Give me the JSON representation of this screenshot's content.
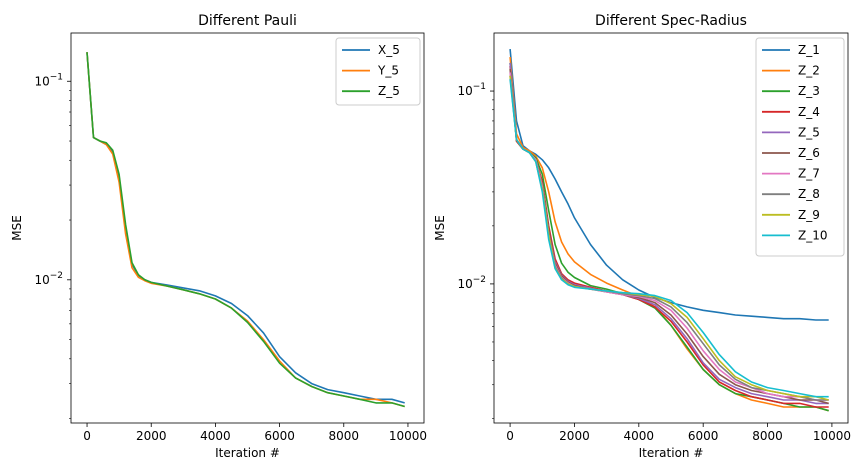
{
  "chart_data": [
    {
      "type": "line",
      "title": "Different Pauli",
      "xlabel": "Iteration #",
      "ylabel": "MSE",
      "yscale": "log",
      "xlim": [
        -500,
        10500
      ],
      "ylim": [
        0.0019,
        0.175
      ],
      "xticks": [
        0,
        2000,
        4000,
        6000,
        8000,
        10000
      ],
      "yticks": [
        {
          "value": 0.1,
          "base": "10",
          "exp": "−1"
        },
        {
          "value": 0.01,
          "base": "10",
          "exp": "−2"
        }
      ],
      "legend": "top-right",
      "x": [
        0,
        200,
        400,
        600,
        800,
        1000,
        1200,
        1400,
        1600,
        1800,
        2000,
        2500,
        3000,
        3500,
        4000,
        4500,
        5000,
        5500,
        6000,
        6500,
        7000,
        7500,
        8000,
        8500,
        9000,
        9500,
        9900
      ],
      "series": [
        {
          "name": "X_5",
          "color": "#1f77b4",
          "values": [
            0.14,
            0.052,
            0.05,
            0.048,
            0.044,
            0.033,
            0.018,
            0.012,
            0.0105,
            0.01,
            0.0097,
            0.0094,
            0.0091,
            0.0088,
            0.0083,
            0.0076,
            0.0066,
            0.0054,
            0.0041,
            0.0034,
            0.003,
            0.0028,
            0.0027,
            0.0026,
            0.0025,
            0.0025,
            0.0024
          ]
        },
        {
          "name": "Y_5",
          "color": "#ff7f0e",
          "values": [
            0.14,
            0.052,
            0.05,
            0.048,
            0.043,
            0.031,
            0.017,
            0.0115,
            0.0103,
            0.0099,
            0.0096,
            0.0093,
            0.0089,
            0.0085,
            0.008,
            0.0072,
            0.0062,
            0.005,
            0.0039,
            0.0032,
            0.0029,
            0.0027,
            0.0026,
            0.0025,
            0.0025,
            0.0024,
            0.0023
          ]
        },
        {
          "name": "Z_5",
          "color": "#2ca02c",
          "values": [
            0.14,
            0.052,
            0.05,
            0.049,
            0.045,
            0.034,
            0.019,
            0.0122,
            0.0106,
            0.01,
            0.0097,
            0.0093,
            0.0089,
            0.0085,
            0.008,
            0.0072,
            0.0061,
            0.0049,
            0.0038,
            0.0032,
            0.0029,
            0.0027,
            0.0026,
            0.0025,
            0.0024,
            0.0024,
            0.0023
          ]
        }
      ]
    },
    {
      "type": "line",
      "title": "Different Spec-Radius",
      "xlabel": "Iteration #",
      "ylabel": "MSE",
      "yscale": "log",
      "xlim": [
        -500,
        10500
      ],
      "ylim": [
        0.0019,
        0.2
      ],
      "xticks": [
        0,
        2000,
        4000,
        6000,
        8000,
        10000
      ],
      "yticks": [
        {
          "value": 0.1,
          "base": "10",
          "exp": "−1"
        },
        {
          "value": 0.01,
          "base": "10",
          "exp": "−2"
        }
      ],
      "legend": "top-right",
      "x": [
        0,
        200,
        400,
        600,
        800,
        1000,
        1200,
        1400,
        1600,
        1800,
        2000,
        2500,
        3000,
        3500,
        4000,
        4500,
        5000,
        5500,
        6000,
        6500,
        7000,
        7500,
        8000,
        8500,
        9000,
        9500,
        9900
      ],
      "series": [
        {
          "name": "Z_1",
          "color": "#1f77b4",
          "values": [
            0.165,
            0.07,
            0.052,
            0.049,
            0.047,
            0.044,
            0.04,
            0.035,
            0.03,
            0.026,
            0.022,
            0.016,
            0.0125,
            0.0105,
            0.0093,
            0.0085,
            0.008,
            0.0076,
            0.0073,
            0.0071,
            0.0069,
            0.0068,
            0.0067,
            0.0066,
            0.0066,
            0.0065,
            0.0065
          ]
        },
        {
          "name": "Z_2",
          "color": "#ff7f0e",
          "values": [
            0.15,
            0.06,
            0.051,
            0.049,
            0.046,
            0.04,
            0.03,
            0.021,
            0.0165,
            0.0143,
            0.013,
            0.0112,
            0.0101,
            0.0093,
            0.0086,
            0.0076,
            0.0061,
            0.0046,
            0.0036,
            0.003,
            0.0027,
            0.0025,
            0.0024,
            0.0023,
            0.0023,
            0.0023,
            0.0022
          ]
        },
        {
          "name": "Z_3",
          "color": "#2ca02c",
          "values": [
            0.14,
            0.055,
            0.05,
            0.048,
            0.045,
            0.037,
            0.024,
            0.016,
            0.0128,
            0.0115,
            0.0108,
            0.0098,
            0.0094,
            0.0089,
            0.0083,
            0.0075,
            0.0061,
            0.0047,
            0.0036,
            0.003,
            0.0027,
            0.0026,
            0.0025,
            0.0024,
            0.0023,
            0.0023,
            0.0022
          ]
        },
        {
          "name": "Z_4",
          "color": "#d62728",
          "values": [
            0.135,
            0.055,
            0.05,
            0.048,
            0.044,
            0.034,
            0.02,
            0.0135,
            0.0113,
            0.0105,
            0.0101,
            0.0096,
            0.0092,
            0.0088,
            0.0083,
            0.0076,
            0.0064,
            0.005,
            0.0038,
            0.0031,
            0.0028,
            0.0026,
            0.0025,
            0.0024,
            0.0024,
            0.0023,
            0.0023
          ]
        },
        {
          "name": "Z_5",
          "color": "#9467bd",
          "values": [
            0.14,
            0.056,
            0.05,
            0.048,
            0.044,
            0.033,
            0.019,
            0.013,
            0.0111,
            0.0103,
            0.0099,
            0.0095,
            0.0091,
            0.0088,
            0.0084,
            0.0078,
            0.0066,
            0.0052,
            0.0039,
            0.0032,
            0.0029,
            0.0027,
            0.0026,
            0.0025,
            0.0025,
            0.0024,
            0.0024
          ]
        },
        {
          "name": "Z_6",
          "color": "#8c564b",
          "values": [
            0.13,
            0.056,
            0.05,
            0.048,
            0.044,
            0.033,
            0.019,
            0.0128,
            0.011,
            0.0102,
            0.0098,
            0.0094,
            0.0091,
            0.0088,
            0.0085,
            0.008,
            0.0069,
            0.0055,
            0.0042,
            0.0034,
            0.003,
            0.0028,
            0.0027,
            0.0026,
            0.0025,
            0.0025,
            0.0024
          ]
        },
        {
          "name": "Z_7",
          "color": "#e377c2",
          "values": [
            0.125,
            0.056,
            0.05,
            0.048,
            0.044,
            0.032,
            0.018,
            0.0125,
            0.0108,
            0.0101,
            0.0097,
            0.0094,
            0.0091,
            0.0088,
            0.0086,
            0.0082,
            0.0073,
            0.0059,
            0.0045,
            0.0036,
            0.0031,
            0.0029,
            0.0027,
            0.0026,
            0.0026,
            0.0025,
            0.0025
          ]
        },
        {
          "name": "Z_8",
          "color": "#7f7f7f",
          "values": [
            0.12,
            0.056,
            0.05,
            0.048,
            0.043,
            0.031,
            0.018,
            0.0123,
            0.0107,
            0.01,
            0.0097,
            0.0094,
            0.0092,
            0.0089,
            0.0087,
            0.0084,
            0.0076,
            0.0063,
            0.0049,
            0.0038,
            0.0032,
            0.0029,
            0.0028,
            0.0027,
            0.0026,
            0.0025,
            0.0025
          ]
        },
        {
          "name": "Z_9",
          "color": "#bcbd22",
          "values": [
            0.12,
            0.056,
            0.05,
            0.048,
            0.043,
            0.031,
            0.018,
            0.0121,
            0.0106,
            0.01,
            0.0097,
            0.0094,
            0.0092,
            0.009,
            0.0088,
            0.0086,
            0.0079,
            0.0067,
            0.0052,
            0.004,
            0.0033,
            0.003,
            0.0028,
            0.0027,
            0.0026,
            0.0026,
            0.0025
          ]
        },
        {
          "name": "Z_10",
          "color": "#17becf",
          "values": [
            0.115,
            0.056,
            0.05,
            0.048,
            0.043,
            0.03,
            0.017,
            0.012,
            0.0105,
            0.0099,
            0.0096,
            0.0094,
            0.0092,
            0.009,
            0.0089,
            0.0087,
            0.0082,
            0.0071,
            0.0056,
            0.0043,
            0.0035,
            0.0031,
            0.0029,
            0.0028,
            0.0027,
            0.0026,
            0.0026
          ]
        }
      ]
    }
  ]
}
